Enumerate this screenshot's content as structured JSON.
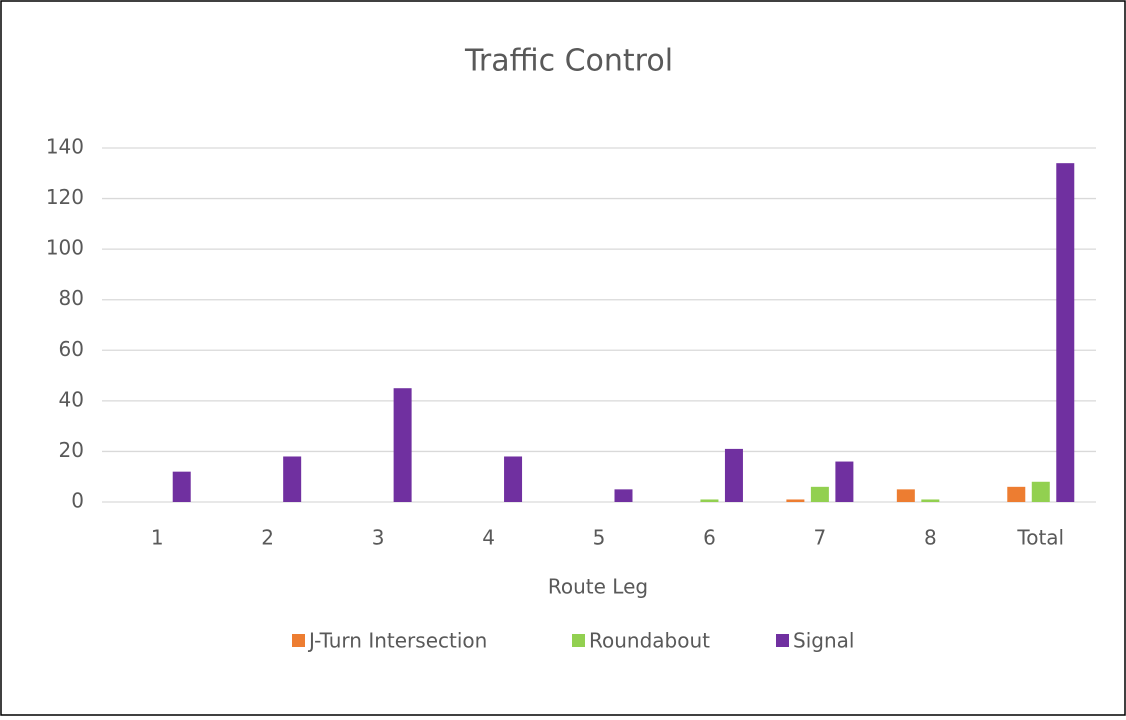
{
  "chart_data": {
    "type": "bar",
    "title": "Traffic Control",
    "x_label": "Route Leg",
    "categories": [
      "1",
      "2",
      "3",
      "4",
      "5",
      "6",
      "7",
      "8",
      "Total"
    ],
    "series": [
      {
        "name": "J-Turn Intersection",
        "color": "#ED7D31",
        "values": [
          0,
          0,
          0,
          0,
          0,
          0,
          1,
          5,
          6
        ]
      },
      {
        "name": "Roundabout",
        "color": "#92D050",
        "values": [
          0,
          0,
          0,
          0,
          0,
          1,
          6,
          1,
          8
        ]
      },
      {
        "name": "Signal",
        "color": "#7030A0",
        "values": [
          12,
          18,
          45,
          18,
          5,
          21,
          16,
          0,
          134
        ]
      }
    ],
    "ylim": [
      0,
      140
    ],
    "yticks": [
      0,
      20,
      40,
      60,
      80,
      100,
      120,
      140
    ],
    "grid": true,
    "legend": "bottom"
  }
}
